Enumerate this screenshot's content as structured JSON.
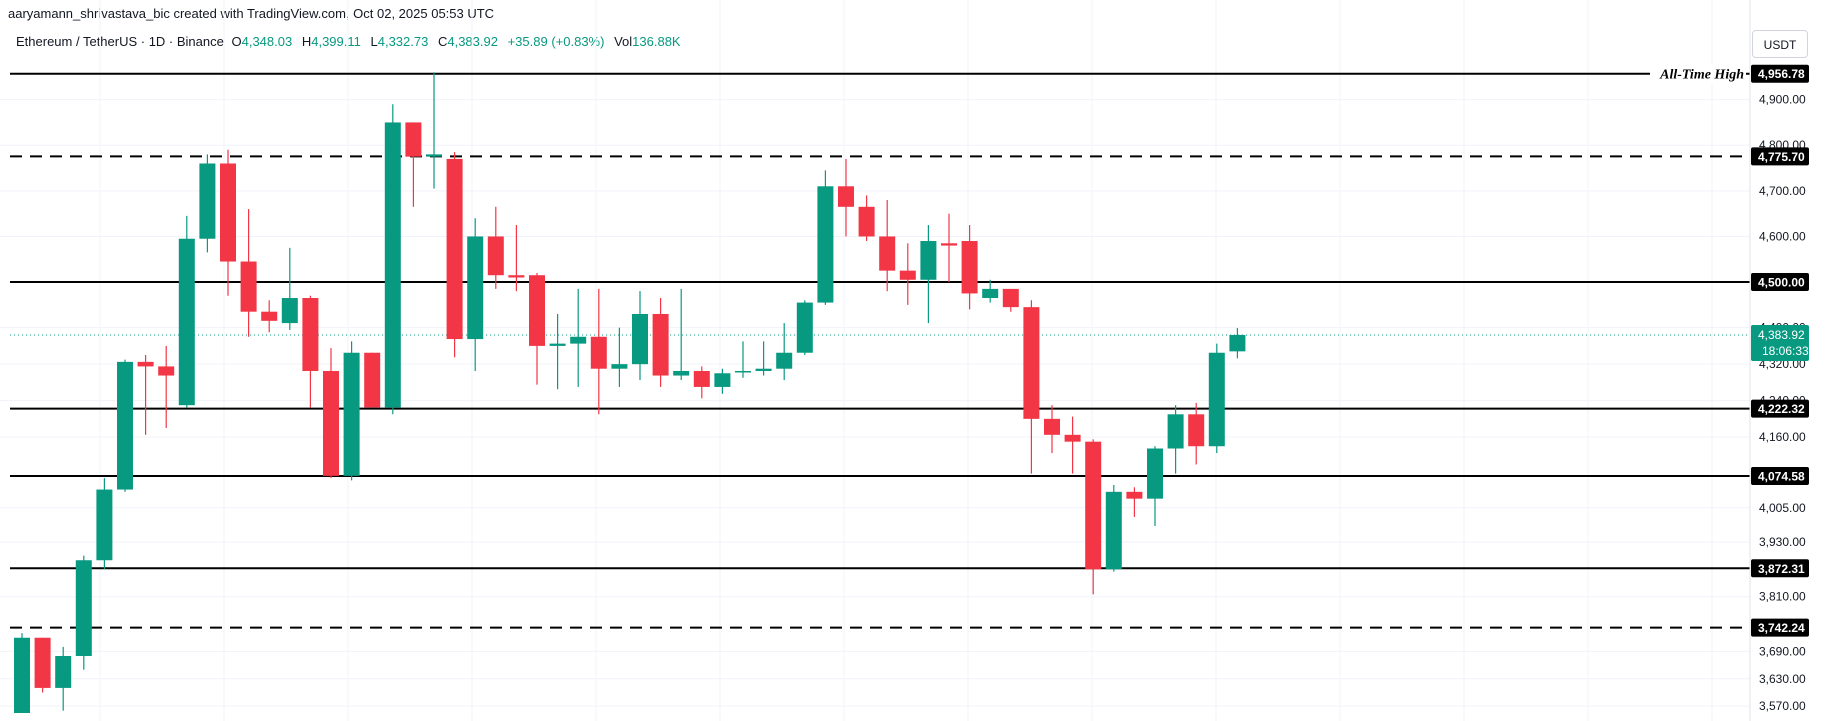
{
  "attribution": "aaryamann_shrivastava_bic created with TradingView.com, Oct 02, 2025 05:53 UTC",
  "legend": {
    "symbol": "Ethereum / TetherUS · 1D · Binance",
    "o_label": "O",
    "o_value": "4,348.03",
    "h_label": "H",
    "h_value": "4,399.11",
    "l_label": "L",
    "l_value": "4,332.73",
    "c_label": "C",
    "c_value": "4,383.92",
    "change": "+35.89 (+0.83%)",
    "vol_label": "Vol",
    "vol_value": "136.88K"
  },
  "currency_button": "USDT",
  "colors": {
    "up": "#089981",
    "down": "#f23645",
    "level": "#000000",
    "grid": "#f0f3fa"
  },
  "chart_data": {
    "type": "candlestick",
    "ylim": [
      3555,
      4965
    ],
    "y_ticks": [
      {
        "value": 4900,
        "label": "4,900.00"
      },
      {
        "value": 4800,
        "label": "4,800.00"
      },
      {
        "value": 4700,
        "label": "4,700.00"
      },
      {
        "value": 4600,
        "label": "4,600.00"
      },
      {
        "value": 4400,
        "label": "4,400.00"
      },
      {
        "value": 4320,
        "label": "4,320.00"
      },
      {
        "value": 4240,
        "label": "4,240.00"
      },
      {
        "value": 4160,
        "label": "4,160.00"
      },
      {
        "value": 4005,
        "label": "4,005.00"
      },
      {
        "value": 3930,
        "label": "3,930.00"
      },
      {
        "value": 3810,
        "label": "3,810.00"
      },
      {
        "value": 3690,
        "label": "3,690.00"
      },
      {
        "value": 3630,
        "label": "3,630.00"
      },
      {
        "value": 3570,
        "label": "3,570.00"
      }
    ],
    "levels": [
      {
        "value": 4956.78,
        "label": "4,956.78",
        "style": "solid",
        "annotation": "All-Time High"
      },
      {
        "value": 4775.7,
        "label": "4,775.70",
        "style": "dashed"
      },
      {
        "value": 4500.0,
        "label": "4,500.00",
        "style": "solid"
      },
      {
        "value": 4222.32,
        "label": "4,222.32",
        "style": "solid"
      },
      {
        "value": 4074.58,
        "label": "4,074.58",
        "style": "solid"
      },
      {
        "value": 3872.31,
        "label": "3,872.31",
        "style": "solid"
      },
      {
        "value": 3742.24,
        "label": "3,742.24",
        "style": "dashed"
      }
    ],
    "current_price": {
      "value": 4383.92,
      "label": "4,383.92",
      "countdown": "18:06:33"
    },
    "candles": [
      {
        "o": 3555,
        "h": 3730,
        "l": 3555,
        "c": 3720
      },
      {
        "o": 3720,
        "h": 3720,
        "l": 3600,
        "c": 3610
      },
      {
        "o": 3610,
        "h": 3700,
        "l": 3560,
        "c": 3680
      },
      {
        "o": 3680,
        "h": 3900,
        "l": 3650,
        "c": 3890
      },
      {
        "o": 3890,
        "h": 4070,
        "l": 3870,
        "c": 4045
      },
      {
        "o": 4045,
        "h": 4330,
        "l": 4040,
        "c": 4325
      },
      {
        "o": 4325,
        "h": 4340,
        "l": 4165,
        "c": 4315
      },
      {
        "o": 4315,
        "h": 4360,
        "l": 4180,
        "c": 4295
      },
      {
        "o": 4230,
        "h": 4645,
        "l": 4225,
        "c": 4595
      },
      {
        "o": 4595,
        "h": 4780,
        "l": 4565,
        "c": 4760
      },
      {
        "o": 4760,
        "h": 4790,
        "l": 4470,
        "c": 4545
      },
      {
        "o": 4545,
        "h": 4660,
        "l": 4380,
        "c": 4435
      },
      {
        "o": 4435,
        "h": 4460,
        "l": 4390,
        "c": 4415
      },
      {
        "o": 4410,
        "h": 4575,
        "l": 4395,
        "c": 4465
      },
      {
        "o": 4465,
        "h": 4470,
        "l": 4225,
        "c": 4305
      },
      {
        "o": 4305,
        "h": 4355,
        "l": 4070,
        "c": 4075
      },
      {
        "o": 4075,
        "h": 4370,
        "l": 4065,
        "c": 4345
      },
      {
        "o": 4345,
        "h": 4345,
        "l": 4225,
        "c": 4225
      },
      {
        "o": 4225,
        "h": 4890,
        "l": 4210,
        "c": 4850
      },
      {
        "o": 4850,
        "h": 4850,
        "l": 4665,
        "c": 4775
      },
      {
        "o": 4775,
        "h": 4960,
        "l": 4705,
        "c": 4780
      },
      {
        "o": 4770,
        "h": 4785,
        "l": 4335,
        "c": 4375
      },
      {
        "o": 4375,
        "h": 4640,
        "l": 4305,
        "c": 4600
      },
      {
        "o": 4600,
        "h": 4665,
        "l": 4485,
        "c": 4515
      },
      {
        "o": 4515,
        "h": 4625,
        "l": 4480,
        "c": 4510
      },
      {
        "o": 4515,
        "h": 4520,
        "l": 4275,
        "c": 4360
      },
      {
        "o": 4360,
        "h": 4430,
        "l": 4265,
        "c": 4365
      },
      {
        "o": 4365,
        "h": 4485,
        "l": 4270,
        "c": 4380
      },
      {
        "o": 4380,
        "h": 4485,
        "l": 4210,
        "c": 4310
      },
      {
        "o": 4310,
        "h": 4400,
        "l": 4270,
        "c": 4320
      },
      {
        "o": 4320,
        "h": 4480,
        "l": 4285,
        "c": 4430
      },
      {
        "o": 4430,
        "h": 4465,
        "l": 4270,
        "c": 4295
      },
      {
        "o": 4295,
        "h": 4485,
        "l": 4285,
        "c": 4305
      },
      {
        "o": 4305,
        "h": 4315,
        "l": 4245,
        "c": 4270
      },
      {
        "o": 4270,
        "h": 4310,
        "l": 4255,
        "c": 4300
      },
      {
        "o": 4305,
        "h": 4370,
        "l": 4290,
        "c": 4305
      },
      {
        "o": 4305,
        "h": 4370,
        "l": 4295,
        "c": 4310
      },
      {
        "o": 4310,
        "h": 4410,
        "l": 4285,
        "c": 4345
      },
      {
        "o": 4345,
        "h": 4460,
        "l": 4340,
        "c": 4455
      },
      {
        "o": 4455,
        "h": 4745,
        "l": 4450,
        "c": 4710
      },
      {
        "o": 4710,
        "h": 4770,
        "l": 4600,
        "c": 4665
      },
      {
        "o": 4665,
        "h": 4690,
        "l": 4590,
        "c": 4600
      },
      {
        "o": 4600,
        "h": 4680,
        "l": 4480,
        "c": 4525
      },
      {
        "o": 4525,
        "h": 4585,
        "l": 4450,
        "c": 4505
      },
      {
        "o": 4505,
        "h": 4625,
        "l": 4410,
        "c": 4590
      },
      {
        "o": 4585,
        "h": 4650,
        "l": 4500,
        "c": 4580
      },
      {
        "o": 4590,
        "h": 4625,
        "l": 4440,
        "c": 4475
      },
      {
        "o": 4465,
        "h": 4505,
        "l": 4455,
        "c": 4485
      },
      {
        "o": 4485,
        "h": 4485,
        "l": 4435,
        "c": 4445
      },
      {
        "o": 4445,
        "h": 4460,
        "l": 4080,
        "c": 4200
      },
      {
        "o": 4200,
        "h": 4230,
        "l": 4125,
        "c": 4165
      },
      {
        "o": 4165,
        "h": 4205,
        "l": 4080,
        "c": 4150
      },
      {
        "o": 4150,
        "h": 4155,
        "l": 3815,
        "c": 3870
      },
      {
        "o": 3870,
        "h": 4055,
        "l": 3865,
        "c": 4040
      },
      {
        "o": 4040,
        "h": 4050,
        "l": 3985,
        "c": 4025
      },
      {
        "o": 4025,
        "h": 4140,
        "l": 3965,
        "c": 4135
      },
      {
        "o": 4135,
        "h": 4230,
        "l": 4080,
        "c": 4210
      },
      {
        "o": 4210,
        "h": 4235,
        "l": 4100,
        "c": 4140
      },
      {
        "o": 4140,
        "h": 4365,
        "l": 4125,
        "c": 4345
      },
      {
        "o": 4348.03,
        "h": 4399.11,
        "l": 4332.73,
        "c": 4383.92
      }
    ]
  }
}
